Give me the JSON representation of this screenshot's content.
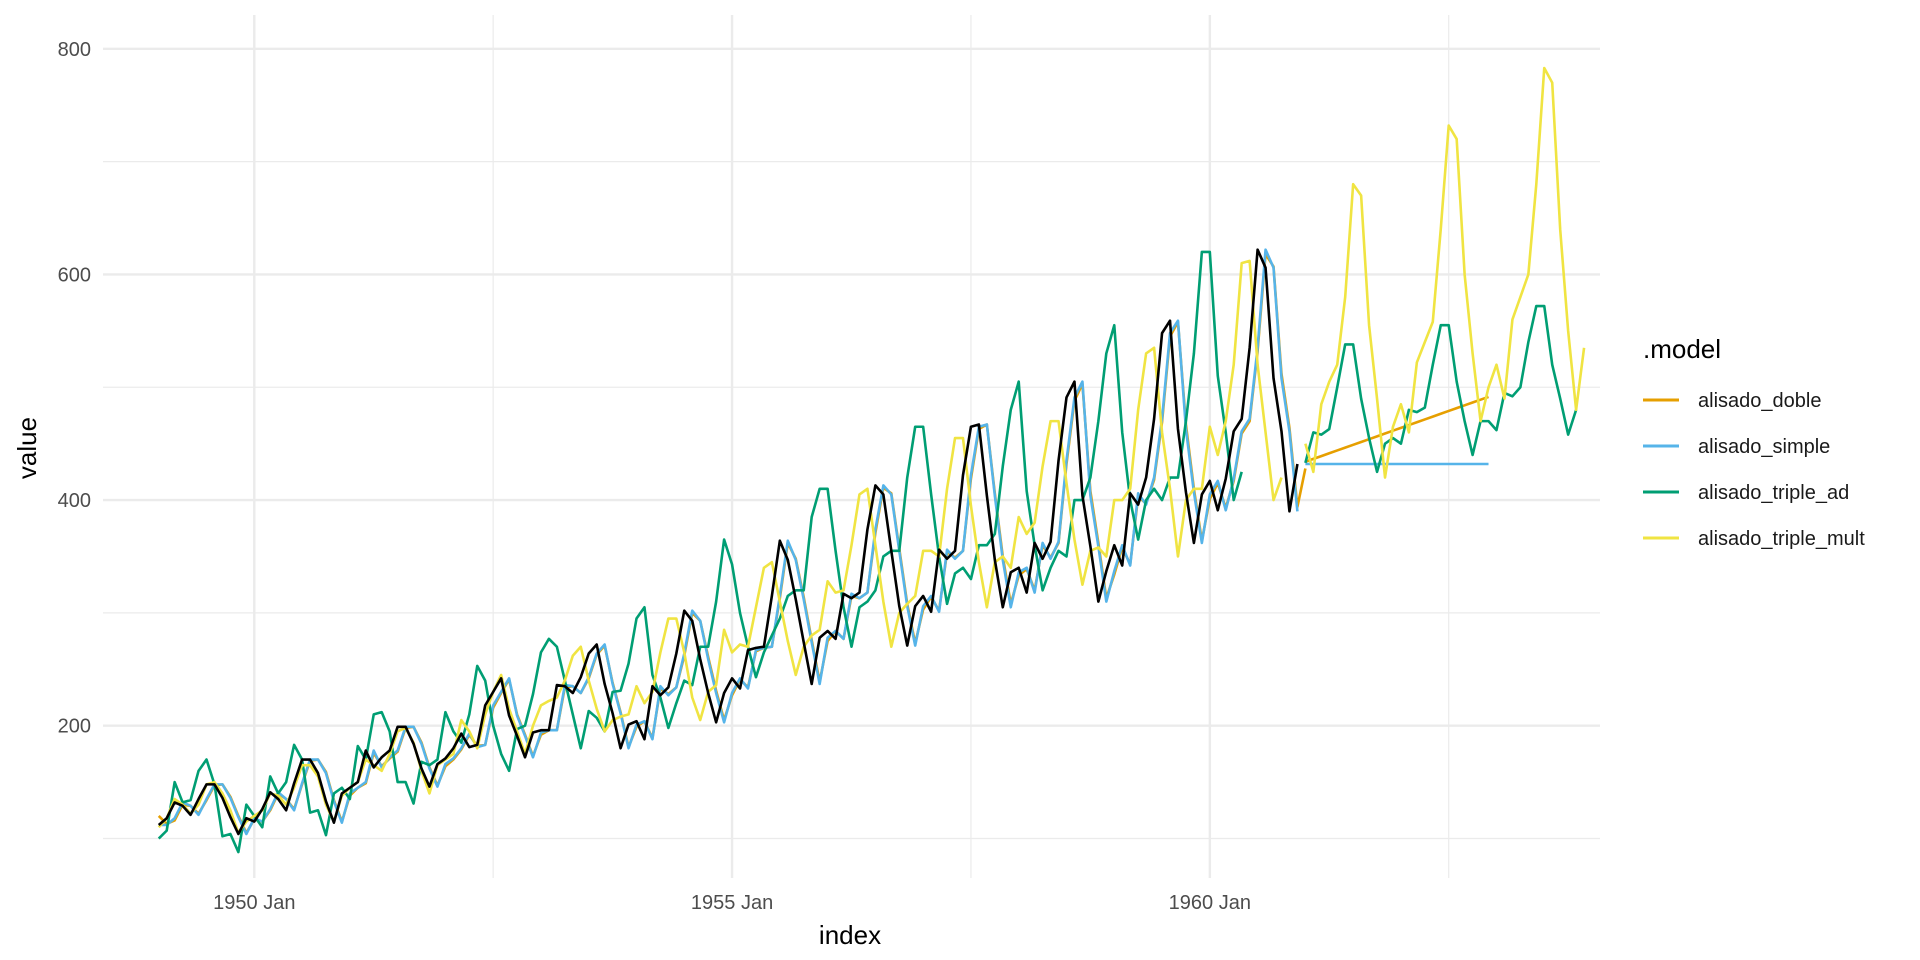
{
  "chart_data": {
    "type": "line",
    "xlabel": "index",
    "ylabel": "value",
    "x_tick_labels": [
      {
        "label": "1950 Jan",
        "year": 1950
      },
      {
        "label": "1955 Jan",
        "year": 1955
      },
      {
        "label": "1960 Jan",
        "year": 1960
      }
    ],
    "y_ticks": [
      200,
      400,
      600,
      800
    ],
    "xlim": [
      "1948-06",
      "1964-02"
    ],
    "ylim": [
      65,
      830
    ],
    "grid": true,
    "legend": {
      "title": ".model",
      "position": "right",
      "entries": [
        {
          "label": "alisado_doble",
          "color": "#E69F00"
        },
        {
          "label": "alisado_simple",
          "color": "#56B4E9"
        },
        {
          "label": "alisado_triple_ad",
          "color": "#009E73"
        },
        {
          "label": "alisado_triple_mult",
          "color": "#F0E442"
        }
      ]
    },
    "series": [
      {
        "color": "#000000",
        "start": "1949-01",
        "step": "month",
        "values": [
          112,
          118,
          132,
          129,
          121,
          135,
          148,
          148,
          136,
          119,
          104,
          118,
          115,
          126,
          141,
          135,
          125,
          149,
          170,
          170,
          158,
          133,
          114,
          140,
          145,
          150,
          178,
          163,
          172,
          178,
          199,
          199,
          184,
          162,
          146,
          166,
          171,
          180,
          193,
          181,
          183,
          218,
          230,
          242,
          209,
          191,
          172,
          194,
          196,
          196,
          236,
          235,
          229,
          243,
          264,
          272,
          237,
          211,
          180,
          201,
          204,
          188,
          235,
          227,
          234,
          264,
          302,
          293,
          259,
          229,
          203,
          229,
          242,
          233,
          267,
          269,
          270,
          315,
          364,
          347,
          312,
          274,
          237,
          278,
          284,
          277,
          317,
          313,
          318,
          374,
          413,
          405,
          355,
          306,
          271,
          306,
          315,
          301,
          356,
          348,
          355,
          422,
          465,
          467,
          404,
          347,
          305,
          336,
          340,
          318,
          362,
          348,
          363,
          435,
          491,
          505,
          404,
          359,
          310,
          337,
          360,
          342,
          406,
          396,
          420,
          472,
          548,
          559,
          463,
          407,
          362,
          405,
          417,
          391,
          419,
          461,
          472,
          535,
          622,
          606,
          508,
          461,
          390,
          432
        ]
      },
      {
        "name": "alisado_doble",
        "color": "#E69F00",
        "segments": [
          {
            "start": "1949-01",
            "step": "month",
            "values": [
              120,
              113,
              116,
              130,
              129,
              122,
              134,
              147,
              148,
              137,
              120,
              105,
              117,
              115,
              125,
              140,
              135,
              126,
              148,
              169,
              170,
              159,
              134,
              115,
              138,
              145,
              149,
              176,
              164,
              171,
              177,
              198,
              199,
              185,
              163,
              147,
              164,
              170,
              179,
              192,
              182,
              183,
              216,
              229,
              241,
              210,
              192,
              173,
              192,
              196,
              196,
              234,
              235,
              229,
              242,
              263,
              271,
              238,
              212,
              181,
              199,
              204,
              189,
              233,
              228,
              234,
              262,
              300,
              293,
              261,
              231,
              205,
              227,
              241,
              234,
              266,
              269,
              270,
              313,
              362,
              348,
              314,
              276,
              239,
              275,
              284,
              277,
              315,
              313,
              318,
              371,
              411,
              406,
              357,
              308,
              273,
              303,
              314,
              302,
              354,
              349,
              355,
              419,
              463,
              467,
              406,
              350,
              308,
              333,
              339,
              320,
              360,
              349,
              362,
              432,
              488,
              503,
              408,
              362,
              313,
              334,
              358,
              343,
              403,
              397,
              418,
              469,
              545,
              558,
              467,
              410,
              364,
              401,
              415,
              393,
              417,
              459,
              470,
              532,
              618,
              607,
              512,
              464,
              394,
              428
            ]
          },
          {
            "start": "1961-01",
            "step": "month",
            "values": [
              434,
              436.5,
              439,
              441.5,
              444,
              446.5,
              449,
              451.5,
              454,
              456.5,
              459,
              461.5,
              464,
              466.5,
              469,
              471.5,
              474,
              476.5,
              479,
              481.5,
              484,
              486.5,
              489,
              491.5
            ]
          }
        ]
      },
      {
        "name": "alisado_simple",
        "color": "#56B4E9",
        "segments": [
          {
            "start": "1949-01",
            "step": "month",
            "values": [
              112,
              112,
              118,
              132,
              129,
              121,
              135,
              148,
              148,
              136,
              119,
              104,
              118,
              115,
              126,
              141,
              135,
              125,
              149,
              170,
              170,
              158,
              133,
              114,
              140,
              145,
              150,
              178,
              163,
              172,
              178,
              199,
              199,
              184,
              162,
              146,
              166,
              171,
              180,
              193,
              181,
              183,
              218,
              230,
              242,
              209,
              191,
              172,
              194,
              196,
              196,
              236,
              235,
              229,
              243,
              264,
              272,
              237,
              211,
              180,
              201,
              204,
              188,
              235,
              227,
              234,
              264,
              302,
              293,
              259,
              229,
              203,
              229,
              242,
              233,
              267,
              269,
              270,
              315,
              364,
              347,
              312,
              274,
              237,
              278,
              284,
              277,
              317,
              313,
              318,
              374,
              413,
              405,
              355,
              306,
              271,
              306,
              315,
              301,
              356,
              348,
              355,
              422,
              465,
              467,
              404,
              347,
              305,
              336,
              340,
              318,
              362,
              348,
              363,
              435,
              491,
              505,
              404,
              359,
              310,
              337,
              360,
              342,
              406,
              396,
              420,
              472,
              548,
              559,
              463,
              407,
              362,
              405,
              417,
              391,
              419,
              461,
              472,
              535,
              622,
              606,
              508,
              461,
              390
            ]
          },
          {
            "start": "1961-01",
            "step": "month",
            "values": [
              432,
              432,
              432,
              432,
              432,
              432,
              432,
              432,
              432,
              432,
              432,
              432,
              432,
              432,
              432,
              432,
              432,
              432,
              432,
              432,
              432,
              432,
              432,
              432
            ]
          }
        ]
      },
      {
        "name": "alisado_triple_ad",
        "color": "#009E73",
        "segments": [
          {
            "start": "1949-01",
            "step": "month",
            "values": [
              100,
              107,
              150,
              132,
              134,
              160,
              170,
              148,
              102,
              104,
              88,
              130,
              120,
              110,
              155,
              140,
              150,
              183,
              170,
              123,
              125,
              103,
              140,
              145,
              135,
              182,
              170,
              210,
              212,
              195,
              150,
              150,
              131,
              168,
              165,
              170,
              212,
              195,
              185,
              210,
              253,
              240,
              200,
              175,
              160,
              197,
              200,
              228,
              265,
              277,
              270,
              240,
              210,
              180,
              213,
              207,
              195,
              230,
              231,
              255,
              295,
              305,
              245,
              225,
              198,
              220,
              240,
              236,
              270,
              270,
              310,
              365,
              343,
              300,
              270,
              243,
              265,
              280,
              295,
              315,
              320,
              320,
              385,
              410,
              410,
              355,
              305,
              270,
              305,
              310,
              320,
              350,
              355,
              355,
              420,
              465,
              465,
              405,
              350,
              308,
              335,
              340,
              330,
              360,
              360,
              370,
              430,
              480,
              505,
              408,
              360,
              320,
              340,
              355,
              350,
              400,
              400,
              420,
              470,
              530,
              555,
              460,
              400,
              365,
              400,
              410,
              400,
              420,
              420,
              470,
              530,
              620,
              620,
              510,
              460,
              400,
              425
            ]
          },
          {
            "start": "1961-01",
            "step": "month",
            "values": [
              433,
              460,
              458,
              463,
              500,
              538,
              538,
              490,
              455,
              425,
              450,
              455,
              450,
              480,
              478,
              482,
              520,
              555,
              555,
              505,
              470,
              440,
              470,
              470,
              462,
              495,
              492,
              500,
              540,
              572,
              572,
              520,
              490,
              458,
              480
            ]
          }
        ]
      },
      {
        "name": "alisado_triple_mult",
        "color": "#F0E442",
        "segments": [
          {
            "start": "1949-01",
            "step": "month",
            "values": [
              110,
              118,
              135,
              130,
              122,
              130,
              148,
              150,
              140,
              125,
              105,
              115,
              120,
              125,
              140,
              138,
              130,
              145,
              165,
              165,
              155,
              130,
              115,
              138,
              145,
              150,
              170,
              165,
              160,
              175,
              195,
              198,
              185,
              160,
              140,
              165,
              170,
              175,
              205,
              195,
              180,
              210,
              230,
              245,
              215,
              195,
              175,
              200,
              218,
              222,
              225,
              240,
              262,
              270,
              240,
              215,
              195,
              205,
              208,
              210,
              235,
              220,
              230,
              265,
              295,
              295,
              265,
              225,
              205,
              230,
              236,
              285,
              265,
              272,
              270,
              305,
              340,
              345,
              310,
              275,
              245,
              270,
              280,
              285,
              328,
              318,
              320,
              360,
              405,
              410,
              360,
              310,
              270,
              300,
              308,
              315,
              355,
              355,
              350,
              410,
              455,
              455,
              395,
              345,
              305,
              345,
              350,
              340,
              385,
              370,
              380,
              430,
              470,
              470,
              415,
              365,
              325,
              355,
              358,
              350,
              400,
              400,
              410,
              480,
              530,
              535,
              460,
              410,
              350,
              400,
              410,
              410,
              465,
              440,
              470,
              520,
              610,
              612,
              520,
              460,
              400,
              420
            ]
          },
          {
            "start": "1961-01",
            "step": "month",
            "values": [
              450,
              425,
              485,
              505,
              520,
              580,
              680,
              670,
              555,
              490,
              420,
              465,
              485,
              460,
              522,
              540,
              558,
              640,
              732,
              720,
              600,
              530,
              470,
              500,
              520,
              490,
              560,
              580,
              600,
              680,
              783,
              770,
              640,
              550,
              480,
              535
            ]
          }
        ]
      }
    ]
  }
}
